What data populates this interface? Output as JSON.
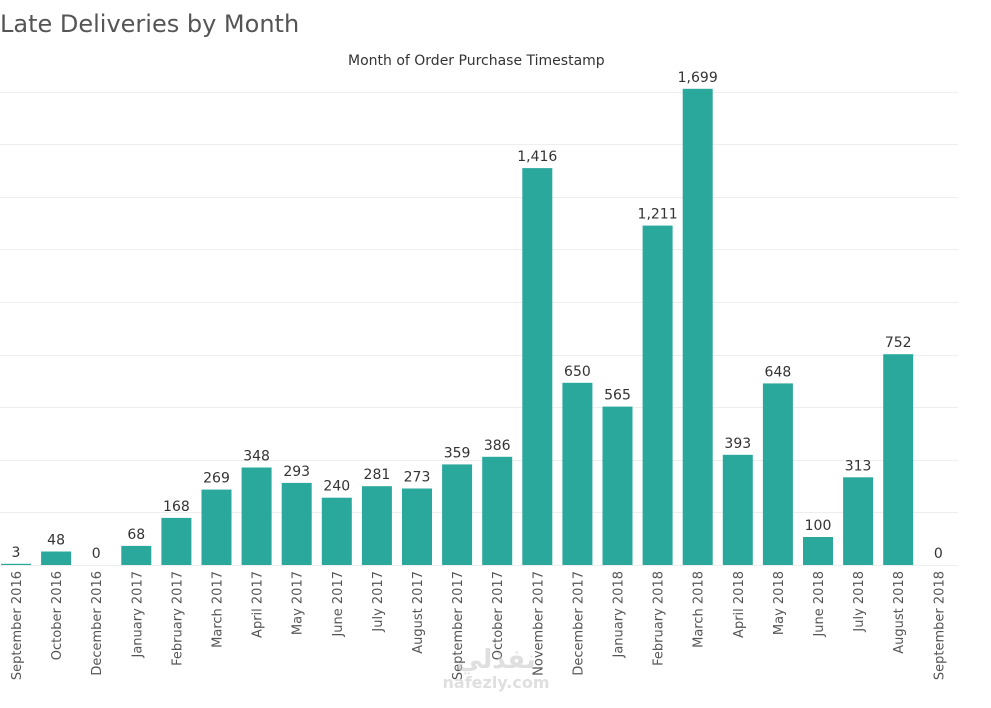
{
  "colors": {
    "bar": "#2ba89c",
    "gridline": "#eeeeee",
    "label": "#333333",
    "tick": "#555555"
  },
  "watermark": {
    "logo": "نفذلي",
    "text": "nafezly.com"
  },
  "chart_data": {
    "type": "bar",
    "title": "Late Deliveries by Month",
    "xlabel": "Month of Order Purchase Timestamp",
    "ylabel": "",
    "ylim": [
      0,
      1800
    ],
    "grid": true,
    "data_labels": true,
    "categories": [
      "September 2016",
      "October 2016",
      "December 2016",
      "January 2017",
      "February 2017",
      "March 2017",
      "April 2017",
      "May 2017",
      "June 2017",
      "July 2017",
      "August 2017",
      "September 2017",
      "October 2017",
      "November 2017",
      "December 2017",
      "January 2018",
      "February 2018",
      "March 2018",
      "April 2018",
      "May 2018",
      "June 2018",
      "July 2018",
      "August 2018",
      "September 2018"
    ],
    "values": [
      3,
      48,
      0,
      68,
      168,
      269,
      348,
      293,
      240,
      281,
      273,
      359,
      386,
      1416,
      650,
      565,
      1211,
      1699,
      393,
      648,
      100,
      313,
      752,
      0
    ],
    "value_labels": [
      "3",
      "48",
      "0",
      "68",
      "168",
      "269",
      "348",
      "293",
      "240",
      "281",
      "273",
      "359",
      "386",
      "1,416",
      "650",
      "565",
      "1,211",
      "1,699",
      "393",
      "648",
      "100",
      "313",
      "752",
      "0"
    ]
  }
}
